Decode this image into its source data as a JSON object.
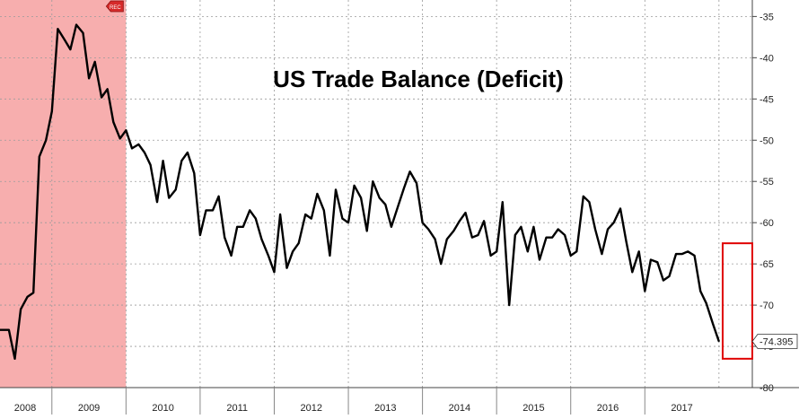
{
  "chart_data": {
    "type": "line",
    "title": "US Trade Balance (Deficit)",
    "xlabel": "",
    "ylabel": "",
    "ylim": [
      -80,
      -33
    ],
    "x_range": [
      2007.8,
      2017.95
    ],
    "y_ticks": [
      -35,
      -40,
      -45,
      -50,
      -55,
      -60,
      -65,
      -70,
      -75,
      -80
    ],
    "y_tick_labels": [
      "-35",
      "-40",
      "-45",
      "-50",
      "-55",
      "-60",
      "-65",
      "-70",
      "-75",
      "-80"
    ],
    "x_tick_labels": [
      {
        "label": "2008",
        "x": 2008.0
      },
      {
        "label": "2009",
        "x": 2009.0
      },
      {
        "label": "2010",
        "x": 2010.0
      },
      {
        "label": "2011",
        "x": 2011.0
      },
      {
        "label": "2012",
        "x": 2012.0
      },
      {
        "label": "2013",
        "x": 2013.0
      },
      {
        "label": "2014",
        "x": 2014.0
      },
      {
        "label": "2015",
        "x": 2015.0
      },
      {
        "label": "2016",
        "x": 2016.0
      },
      {
        "label": "2017",
        "x": 2017.0
      }
    ],
    "recession_shading": {
      "label": "REC",
      "start": 2007.8,
      "end": 2009.5,
      "color": "#f6a0a0"
    },
    "last_value_label": "-74.395",
    "last_value": -74.395,
    "highlight_box": {
      "x_start": 2017.55,
      "x_end": 2017.95,
      "y_top": -62.5,
      "y_bottom": -76.5,
      "color": "#e00000"
    },
    "grid": true,
    "line_color": "#000000",
    "series": [
      {
        "values": [
          [
            2007.8,
            -73.0
          ],
          [
            2007.92,
            -73.0
          ],
          [
            2008.0,
            -76.5
          ],
          [
            2008.08,
            -70.5
          ],
          [
            2008.17,
            -69.0
          ],
          [
            2008.25,
            -68.5
          ],
          [
            2008.33,
            -52.0
          ],
          [
            2008.42,
            -50.0
          ],
          [
            2008.5,
            -46.5
          ],
          [
            2008.58,
            -36.5
          ],
          [
            2008.67,
            -37.8
          ],
          [
            2008.75,
            -39.0
          ],
          [
            2008.83,
            -36.0
          ],
          [
            2008.92,
            -37.0
          ],
          [
            2009.0,
            -42.5
          ],
          [
            2009.08,
            -40.5
          ],
          [
            2009.17,
            -44.8
          ],
          [
            2009.25,
            -43.8
          ],
          [
            2009.33,
            -47.8
          ],
          [
            2009.42,
            -49.8
          ],
          [
            2009.5,
            -48.8
          ],
          [
            2009.58,
            -51.0
          ],
          [
            2009.67,
            -50.5
          ],
          [
            2009.75,
            -51.5
          ],
          [
            2009.83,
            -53.0
          ],
          [
            2009.92,
            -57.5
          ],
          [
            2010.0,
            -52.5
          ],
          [
            2010.08,
            -57.0
          ],
          [
            2010.17,
            -56.0
          ],
          [
            2010.25,
            -52.5
          ],
          [
            2010.33,
            -51.5
          ],
          [
            2010.42,
            -54.0
          ],
          [
            2010.5,
            -61.5
          ],
          [
            2010.58,
            -58.5
          ],
          [
            2010.67,
            -58.5
          ],
          [
            2010.75,
            -56.8
          ],
          [
            2010.83,
            -61.8
          ],
          [
            2010.92,
            -64.0
          ],
          [
            2011.0,
            -60.5
          ],
          [
            2011.08,
            -60.5
          ],
          [
            2011.17,
            -58.5
          ],
          [
            2011.25,
            -59.5
          ],
          [
            2011.33,
            -62.0
          ],
          [
            2011.42,
            -64.0
          ],
          [
            2011.5,
            -66.0
          ],
          [
            2011.58,
            -59.0
          ],
          [
            2011.67,
            -65.5
          ],
          [
            2011.75,
            -63.5
          ],
          [
            2011.83,
            -62.5
          ],
          [
            2011.92,
            -59.0
          ],
          [
            2012.0,
            -59.5
          ],
          [
            2012.08,
            -56.5
          ],
          [
            2012.17,
            -58.5
          ],
          [
            2012.25,
            -64.0
          ],
          [
            2012.33,
            -56.0
          ],
          [
            2012.42,
            -59.5
          ],
          [
            2012.5,
            -60.0
          ],
          [
            2012.58,
            -55.5
          ],
          [
            2012.67,
            -57.0
          ],
          [
            2012.75,
            -61.0
          ],
          [
            2012.83,
            -55.0
          ],
          [
            2012.92,
            -57.0
          ],
          [
            2013.0,
            -57.8
          ],
          [
            2013.08,
            -60.5
          ],
          [
            2013.17,
            -58.0
          ],
          [
            2013.25,
            -55.8
          ],
          [
            2013.33,
            -53.8
          ],
          [
            2013.42,
            -55.2
          ],
          [
            2013.5,
            -60.0
          ],
          [
            2013.58,
            -60.8
          ],
          [
            2013.67,
            -62.0
          ],
          [
            2013.75,
            -65.0
          ],
          [
            2013.83,
            -62.0
          ],
          [
            2013.92,
            -61.0
          ],
          [
            2014.0,
            -59.8
          ],
          [
            2014.08,
            -58.8
          ],
          [
            2014.17,
            -61.8
          ],
          [
            2014.25,
            -61.5
          ],
          [
            2014.33,
            -59.8
          ],
          [
            2014.42,
            -64.0
          ],
          [
            2014.5,
            -63.5
          ],
          [
            2014.58,
            -57.5
          ],
          [
            2014.67,
            -70.0
          ],
          [
            2014.75,
            -61.5
          ],
          [
            2014.83,
            -60.5
          ],
          [
            2014.92,
            -63.5
          ],
          [
            2015.0,
            -60.5
          ],
          [
            2015.08,
            -64.5
          ],
          [
            2015.17,
            -61.8
          ],
          [
            2015.25,
            -61.8
          ],
          [
            2015.33,
            -60.8
          ],
          [
            2015.42,
            -61.5
          ],
          [
            2015.5,
            -64.0
          ],
          [
            2015.58,
            -63.5
          ],
          [
            2015.67,
            -56.8
          ],
          [
            2015.75,
            -57.5
          ],
          [
            2015.83,
            -60.8
          ],
          [
            2015.92,
            -63.8
          ],
          [
            2016.0,
            -60.8
          ],
          [
            2016.08,
            -60.0
          ],
          [
            2016.17,
            -58.3
          ],
          [
            2016.25,
            -62.3
          ],
          [
            2016.33,
            -66.0
          ],
          [
            2016.42,
            -63.5
          ],
          [
            2016.5,
            -68.3
          ],
          [
            2016.58,
            -64.5
          ],
          [
            2016.67,
            -64.8
          ],
          [
            2016.75,
            -67.0
          ],
          [
            2016.83,
            -66.5
          ],
          [
            2016.92,
            -63.8
          ],
          [
            2017.0,
            -63.8
          ],
          [
            2017.08,
            -63.5
          ],
          [
            2017.17,
            -64.0
          ],
          [
            2017.25,
            -68.3
          ],
          [
            2017.33,
            -69.8
          ],
          [
            2017.42,
            -72.3
          ],
          [
            2017.5,
            -74.395
          ]
        ]
      }
    ]
  }
}
